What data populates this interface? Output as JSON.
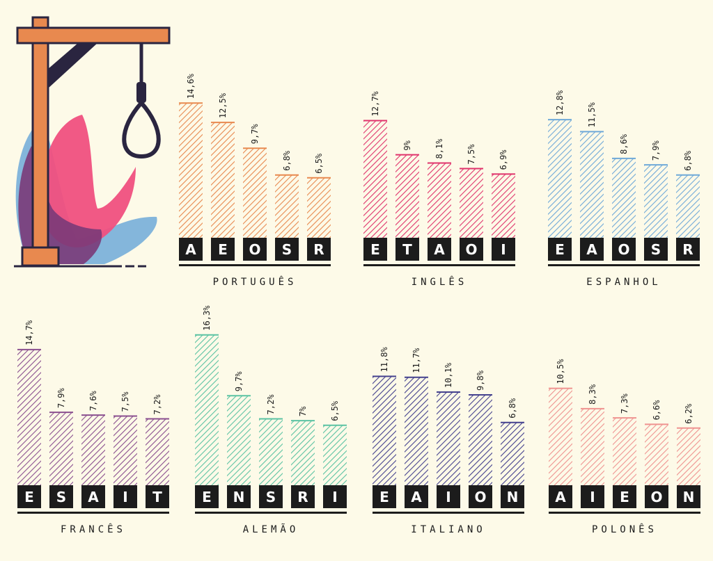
{
  "illustration": {
    "name": "hangman-gallows"
  },
  "colors": {
    "background": "#fdfae8",
    "ink": "#1c1c1c"
  },
  "chart_data": [
    {
      "type": "bar",
      "title": "PORTUGUÊS",
      "categories": [
        "A",
        "E",
        "O",
        "S",
        "R"
      ],
      "values": [
        14.6,
        12.5,
        9.7,
        6.8,
        6.5
      ],
      "labels": [
        "14,6%",
        "12,5%",
        "9,7%",
        "6,8%",
        "6,5%"
      ],
      "color": "#e8894f",
      "ylim": [
        0,
        16.3
      ]
    },
    {
      "type": "bar",
      "title": "INGLÊS",
      "categories": [
        "E",
        "T",
        "A",
        "O",
        "I"
      ],
      "values": [
        12.7,
        9,
        8.1,
        7.5,
        6.9
      ],
      "labels": [
        "12,7%",
        "9%",
        "8,1%",
        "7,5%",
        "6,9%"
      ],
      "color": "#e0346c",
      "ylim": [
        0,
        16.3
      ]
    },
    {
      "type": "bar",
      "title": "ESPANHOL",
      "categories": [
        "E",
        "A",
        "O",
        "S",
        "R"
      ],
      "values": [
        12.8,
        11.5,
        8.6,
        7.9,
        6.8
      ],
      "labels": [
        "12,8%",
        "11,5%",
        "8,6%",
        "7,9%",
        "6,8%"
      ],
      "color": "#6fa9d8",
      "ylim": [
        0,
        16.3
      ]
    },
    {
      "type": "bar",
      "title": "FRANCÊS",
      "categories": [
        "E",
        "S",
        "A",
        "I",
        "T"
      ],
      "values": [
        14.7,
        7.9,
        7.6,
        7.5,
        7.2
      ],
      "labels": [
        "14,7%",
        "7,9%",
        "7,6%",
        "7,5%",
        "7,2%"
      ],
      "color": "#8a4f8f",
      "ylim": [
        0,
        16.3
      ]
    },
    {
      "type": "bar",
      "title": "ALEMÃO",
      "categories": [
        "E",
        "N",
        "S",
        "R",
        "I"
      ],
      "values": [
        16.3,
        9.7,
        7.2,
        7,
        6.5
      ],
      "labels": [
        "16,3%",
        "9,7%",
        "7,2%",
        "7%",
        "6,5%"
      ],
      "color": "#5cc3a3",
      "ylim": [
        0,
        16.3
      ]
    },
    {
      "type": "bar",
      "title": "ITALIANO",
      "categories": [
        "E",
        "A",
        "I",
        "O",
        "N"
      ],
      "values": [
        11.8,
        11.7,
        10.1,
        9.8,
        6.8
      ],
      "labels": [
        "11,8%",
        "11,7%",
        "10,1%",
        "9,8%",
        "6,8%"
      ],
      "color": "#44418e",
      "ylim": [
        0,
        16.3
      ]
    },
    {
      "type": "bar",
      "title": "POLONÊS",
      "categories": [
        "A",
        "I",
        "E",
        "O",
        "N"
      ],
      "values": [
        10.5,
        8.3,
        7.3,
        6.6,
        6.2
      ],
      "labels": [
        "10,5%",
        "8,3%",
        "7,3%",
        "6,6%",
        "6,2%"
      ],
      "color": "#ef9390",
      "ylim": [
        0,
        16.3
      ]
    }
  ]
}
